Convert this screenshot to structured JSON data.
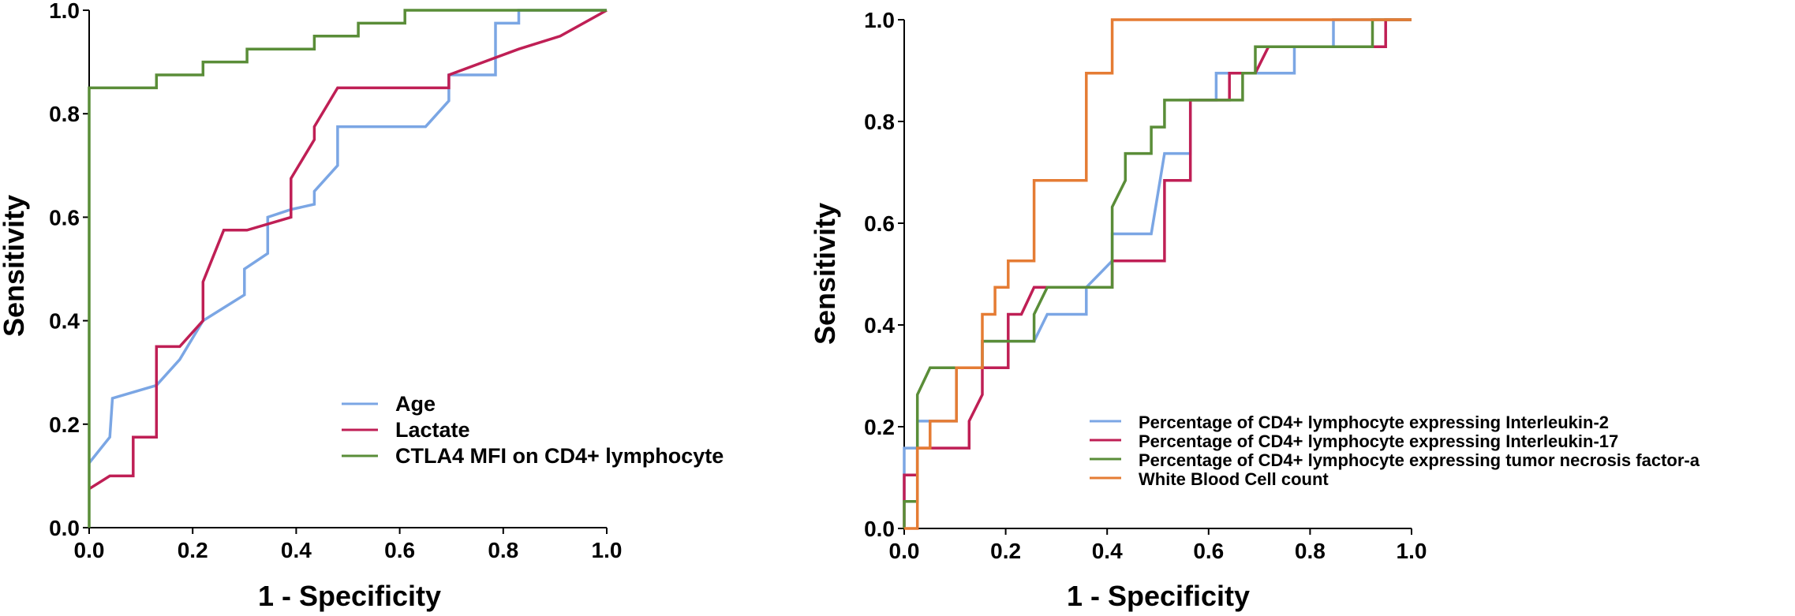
{
  "colors": {
    "blue": "#7ba6e4",
    "crimson": "#bf1f55",
    "green": "#5a8d38",
    "orange": "#e57c34",
    "axis": "#000000"
  },
  "chart_data": [
    {
      "type": "line",
      "title": "",
      "xlabel": "1 - Specificity",
      "ylabel": "Sensitivity",
      "xlim": [
        0,
        1
      ],
      "ylim": [
        0,
        1
      ],
      "xticks": [
        "0.0",
        "0.2",
        "0.4",
        "0.6",
        "0.8",
        "1.0"
      ],
      "yticks": [
        "0.0",
        "0.2",
        "0.4",
        "0.6",
        "0.8",
        "1.0"
      ],
      "legend_position": "lower-right",
      "series": [
        {
          "name": "Age",
          "color": "#7ba6e4",
          "points": [
            [
              0,
              0.125
            ],
            [
              0.04,
              0.175
            ],
            [
              0.045,
              0.25
            ],
            [
              0.13,
              0.275
            ],
            [
              0.175,
              0.325
            ],
            [
              0.22,
              0.4
            ],
            [
              0.3,
              0.45
            ],
            [
              0.3,
              0.5
            ],
            [
              0.345,
              0.53
            ],
            [
              0.345,
              0.6
            ],
            [
              0.39,
              0.615
            ],
            [
              0.435,
              0.625
            ],
            [
              0.435,
              0.65
            ],
            [
              0.48,
              0.7
            ],
            [
              0.48,
              0.775
            ],
            [
              0.65,
              0.775
            ],
            [
              0.695,
              0.825
            ],
            [
              0.695,
              0.875
            ],
            [
              0.785,
              0.875
            ],
            [
              0.785,
              0.975
            ],
            [
              0.83,
              0.975
            ],
            [
              0.83,
              1.0
            ],
            [
              1.0,
              1.0
            ]
          ]
        },
        {
          "name": "Lactate",
          "color": "#bf1f55",
          "points": [
            [
              0,
              0.075
            ],
            [
              0.04,
              0.1
            ],
            [
              0.085,
              0.1
            ],
            [
              0.085,
              0.175
            ],
            [
              0.13,
              0.175
            ],
            [
              0.13,
              0.35
            ],
            [
              0.175,
              0.35
            ],
            [
              0.22,
              0.4
            ],
            [
              0.22,
              0.475
            ],
            [
              0.26,
              0.575
            ],
            [
              0.305,
              0.575
            ],
            [
              0.39,
              0.6
            ],
            [
              0.39,
              0.675
            ],
            [
              0.435,
              0.75
            ],
            [
              0.435,
              0.775
            ],
            [
              0.48,
              0.85
            ],
            [
              0.695,
              0.85
            ],
            [
              0.695,
              0.875
            ],
            [
              0.83,
              0.925
            ],
            [
              0.91,
              0.95
            ],
            [
              1.0,
              1.0
            ]
          ]
        },
        {
          "name": "CTLA4 MFI on CD4+ lymphocyte",
          "color": "#5a8d38",
          "points": [
            [
              0,
              0.0
            ],
            [
              0,
              0.85
            ],
            [
              0.13,
              0.85
            ],
            [
              0.13,
              0.875
            ],
            [
              0.22,
              0.875
            ],
            [
              0.22,
              0.9
            ],
            [
              0.305,
              0.9
            ],
            [
              0.305,
              0.925
            ],
            [
              0.435,
              0.925
            ],
            [
              0.435,
              0.95
            ],
            [
              0.52,
              0.95
            ],
            [
              0.52,
              0.975
            ],
            [
              0.61,
              0.975
            ],
            [
              0.61,
              1.0
            ],
            [
              1.0,
              1.0
            ]
          ]
        }
      ]
    },
    {
      "type": "line",
      "title": "",
      "xlabel": "1 - Specificity",
      "ylabel": "Sensitivity",
      "xlim": [
        0,
        1
      ],
      "ylim": [
        0,
        1
      ],
      "xticks": [
        "0.0",
        "0.2",
        "0.4",
        "0.6",
        "0.8",
        "1.0"
      ],
      "yticks": [
        "0.0",
        "0.2",
        "0.4",
        "0.6",
        "0.8",
        "1.0"
      ],
      "legend_position": "lower-right",
      "series": [
        {
          "name": "Percentage of CD4+ lymphocyte expressing Interleukin-2",
          "color": "#7ba6e4",
          "points": [
            [
              0,
              0.053
            ],
            [
              0,
              0.158
            ],
            [
              0.026,
              0.158
            ],
            [
              0.026,
              0.211
            ],
            [
              0.103,
              0.211
            ],
            [
              0.103,
              0.316
            ],
            [
              0.154,
              0.316
            ],
            [
              0.154,
              0.368
            ],
            [
              0.256,
              0.368
            ],
            [
              0.282,
              0.421
            ],
            [
              0.359,
              0.421
            ],
            [
              0.359,
              0.474
            ],
            [
              0.41,
              0.526
            ],
            [
              0.41,
              0.579
            ],
            [
              0.487,
              0.579
            ],
            [
              0.513,
              0.737
            ],
            [
              0.564,
              0.737
            ],
            [
              0.564,
              0.842
            ],
            [
              0.615,
              0.842
            ],
            [
              0.615,
              0.895
            ],
            [
              0.692,
              0.895
            ],
            [
              0.769,
              0.895
            ],
            [
              0.769,
              0.947
            ],
            [
              0.846,
              0.947
            ],
            [
              0.846,
              1.0
            ],
            [
              1.0,
              1.0
            ]
          ]
        },
        {
          "name": "Percentage of CD4+ lymphocyte expressing Interleukin-17",
          "color": "#bf1f55",
          "points": [
            [
              0,
              0.0
            ],
            [
              0,
              0.105
            ],
            [
              0.026,
              0.105
            ],
            [
              0.026,
              0.158
            ],
            [
              0.128,
              0.158
            ],
            [
              0.128,
              0.211
            ],
            [
              0.154,
              0.263
            ],
            [
              0.154,
              0.316
            ],
            [
              0.205,
              0.316
            ],
            [
              0.205,
              0.421
            ],
            [
              0.231,
              0.421
            ],
            [
              0.256,
              0.474
            ],
            [
              0.41,
              0.474
            ],
            [
              0.41,
              0.526
            ],
            [
              0.513,
              0.526
            ],
            [
              0.513,
              0.684
            ],
            [
              0.564,
              0.684
            ],
            [
              0.564,
              0.842
            ],
            [
              0.641,
              0.842
            ],
            [
              0.641,
              0.895
            ],
            [
              0.692,
              0.895
            ],
            [
              0.718,
              0.947
            ],
            [
              0.949,
              0.947
            ],
            [
              0.949,
              1.0
            ],
            [
              1.0,
              1.0
            ]
          ]
        },
        {
          "name": "Percentage of CD4+ lymphocyte expressing tumor necrosis factor-a",
          "color": "#5a8d38",
          "points": [
            [
              0,
              0.0
            ],
            [
              0,
              0.053
            ],
            [
              0.026,
              0.053
            ],
            [
              0.026,
              0.263
            ],
            [
              0.051,
              0.316
            ],
            [
              0.154,
              0.316
            ],
            [
              0.154,
              0.368
            ],
            [
              0.256,
              0.368
            ],
            [
              0.256,
              0.421
            ],
            [
              0.282,
              0.474
            ],
            [
              0.41,
              0.474
            ],
            [
              0.41,
              0.632
            ],
            [
              0.436,
              0.684
            ],
            [
              0.436,
              0.737
            ],
            [
              0.487,
              0.737
            ],
            [
              0.487,
              0.789
            ],
            [
              0.513,
              0.789
            ],
            [
              0.513,
              0.842
            ],
            [
              0.667,
              0.842
            ],
            [
              0.667,
              0.895
            ],
            [
              0.692,
              0.895
            ],
            [
              0.692,
              0.947
            ],
            [
              0.923,
              0.947
            ],
            [
              0.923,
              1.0
            ],
            [
              1.0,
              1.0
            ]
          ]
        },
        {
          "name": "White Blood Cell count",
          "color": "#e57c34",
          "points": [
            [
              0,
              0.0
            ],
            [
              0.026,
              0.0
            ],
            [
              0.026,
              0.158
            ],
            [
              0.051,
              0.158
            ],
            [
              0.051,
              0.211
            ],
            [
              0.103,
              0.211
            ],
            [
              0.103,
              0.316
            ],
            [
              0.154,
              0.316
            ],
            [
              0.154,
              0.421
            ],
            [
              0.179,
              0.421
            ],
            [
              0.179,
              0.474
            ],
            [
              0.205,
              0.474
            ],
            [
              0.205,
              0.526
            ],
            [
              0.256,
              0.526
            ],
            [
              0.256,
              0.684
            ],
            [
              0.359,
              0.684
            ],
            [
              0.359,
              0.895
            ],
            [
              0.41,
              0.895
            ],
            [
              0.41,
              1.0
            ],
            [
              1.0,
              1.0
            ]
          ]
        }
      ]
    }
  ]
}
